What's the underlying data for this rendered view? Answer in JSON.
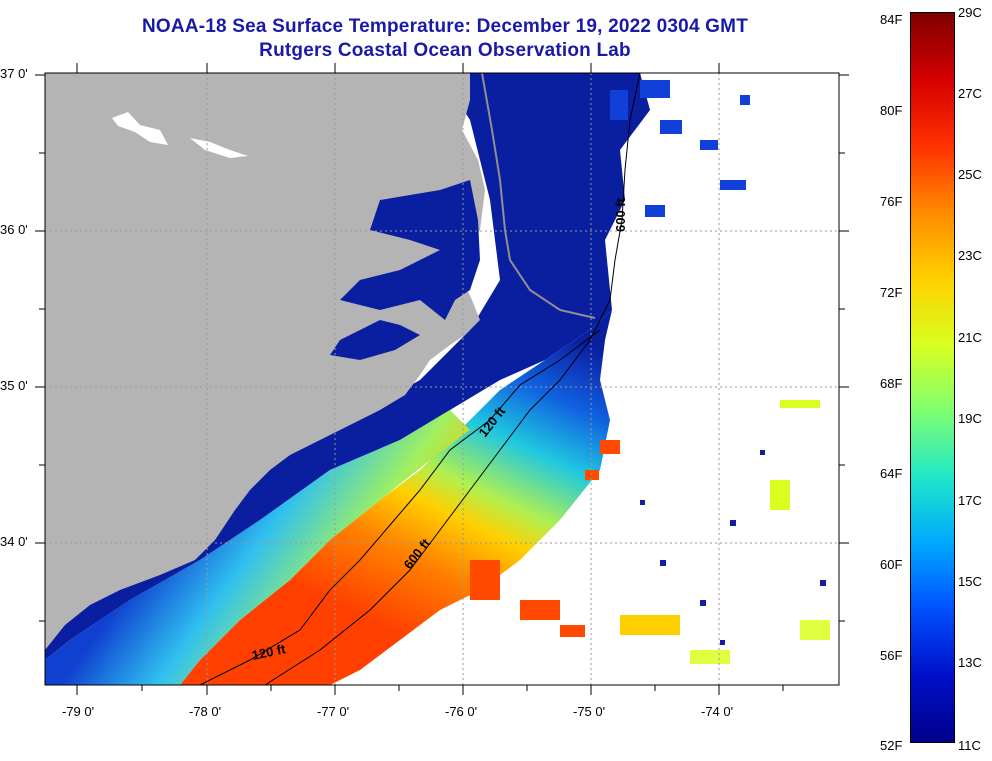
{
  "title": {
    "line1": "NOAA-18 Sea Surface Temperature:  December 19, 2022 0304 GMT",
    "line2": "Rutgers Coastal Ocean Observation Lab"
  },
  "map": {
    "longitude_labels": [
      "-79 0'",
      "-78 0'",
      "-77 0'",
      "-76 0'",
      "-75 0'",
      "-74 0'"
    ],
    "latitude_labels": [
      "37 0'",
      "36 0'",
      "35 0'",
      "34 0'"
    ],
    "isobaths": [
      {
        "label": "120 ft"
      },
      {
        "label": "120 ft"
      },
      {
        "label": "600 ft"
      },
      {
        "label": "600 ft"
      }
    ],
    "colors": {
      "land": "#b4b4b4",
      "no_data": "#ffffff",
      "cold_water": "#0a1ea0",
      "warm_water": "#ff5a00",
      "grid": "#9a9a9a"
    }
  },
  "colorbar": {
    "fahrenheit_labels": [
      "84F",
      "80F",
      "76F",
      "72F",
      "68F",
      "64F",
      "60F",
      "56F",
      "52F"
    ],
    "celsius_labels": [
      "29C",
      "27C",
      "25C",
      "23C",
      "21C",
      "19C",
      "17C",
      "15C",
      "13C",
      "11C"
    ],
    "colors": [
      "#7f0000",
      "#d40000",
      "#ff3000",
      "#ff8a00",
      "#ffd000",
      "#d8ff20",
      "#80ff70",
      "#20e8c8",
      "#00a8ff",
      "#0050ff",
      "#0010c8",
      "#00008a"
    ]
  }
}
